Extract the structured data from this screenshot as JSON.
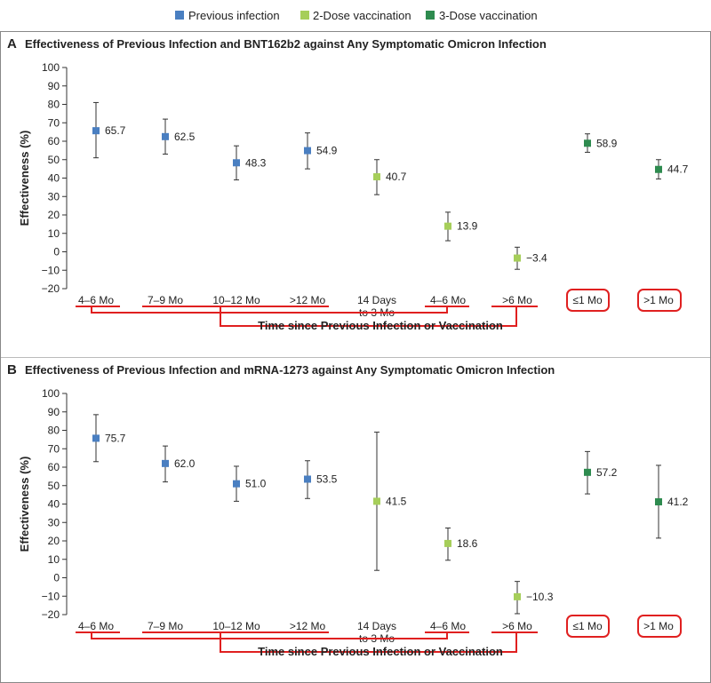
{
  "legend": [
    {
      "label": "Previous infection",
      "color": "#4a7fc1"
    },
    {
      "label": "2-Dose vaccination",
      "color": "#a6ce5a"
    },
    {
      "label": "3-Dose vaccination",
      "color": "#2e8b4f"
    }
  ],
  "highlight_color": "#e02020",
  "chart_data": [
    {
      "type": "scatter",
      "panel": "A",
      "title": "Effectiveness of Previous Infection and BNT162b2 against Any Symptomatic Omicron Infection",
      "ylabel": "Effectiveness (%)",
      "xlabel": "Time since Previous Infection or Vaccination",
      "ylim": [
        -20,
        100
      ],
      "yticks": [
        -20,
        -10,
        0,
        10,
        20,
        30,
        40,
        50,
        60,
        70,
        80,
        90,
        100
      ],
      "ytick_labels": [
        "−20",
        "−10",
        "0",
        "10",
        "20",
        "30",
        "40",
        "50",
        "60",
        "70",
        "80",
        "90",
        "100"
      ],
      "categories": [
        "4–6 Mo",
        "7–9 Mo",
        "10–12 Mo",
        ">12 Mo",
        "14 Days to 3 Mo",
        "4–6 Mo",
        ">6 Mo",
        "≤1 Mo",
        ">1 Mo"
      ],
      "groups": [
        "Previous infection",
        "Previous infection",
        "Previous infection",
        "Previous infection",
        "2-Dose vaccination",
        "2-Dose vaccination",
        "2-Dose vaccination",
        "3-Dose vaccination",
        "3-Dose vaccination"
      ],
      "values": [
        65.7,
        62.5,
        48.3,
        54.9,
        40.7,
        13.9,
        -3.4,
        58.9,
        44.7
      ],
      "value_labels": [
        "65.7",
        "62.5",
        "48.3",
        "54.9",
        "40.7",
        "13.9",
        "−3.4",
        "58.9",
        "44.7"
      ],
      "ci_lower": [
        51,
        53,
        39,
        45,
        31,
        6,
        -9.5,
        54,
        39.5
      ],
      "ci_upper": [
        81,
        72,
        57.5,
        64.5,
        50,
        21.5,
        2.5,
        64,
        50
      ]
    },
    {
      "type": "scatter",
      "panel": "B",
      "title": "Effectiveness of Previous Infection and mRNA-1273 against Any Symptomatic Omicron Infection",
      "ylabel": "Effectiveness (%)",
      "xlabel": "Time since Previous Infection or Vaccination",
      "ylim": [
        -20,
        100
      ],
      "yticks": [
        -20,
        -10,
        0,
        10,
        20,
        30,
        40,
        50,
        60,
        70,
        80,
        90,
        100
      ],
      "ytick_labels": [
        "−20",
        "−10",
        "0",
        "10",
        "20",
        "30",
        "40",
        "50",
        "60",
        "70",
        "80",
        "90",
        "100"
      ],
      "categories": [
        "4–6 Mo",
        "7–9 Mo",
        "10–12 Mo",
        ">12 Mo",
        "14 Days to 3 Mo",
        "4–6 Mo",
        ">6 Mo",
        "≤1 Mo",
        ">1 Mo"
      ],
      "groups": [
        "Previous infection",
        "Previous infection",
        "Previous infection",
        "Previous infection",
        "2-Dose vaccination",
        "2-Dose vaccination",
        "2-Dose vaccination",
        "3-Dose vaccination",
        "3-Dose vaccination"
      ],
      "values": [
        75.7,
        62.0,
        51.0,
        53.5,
        41.5,
        18.6,
        -10.3,
        57.2,
        41.2
      ],
      "value_labels": [
        "75.7",
        "62.0",
        "51.0",
        "53.5",
        "41.5",
        "18.6",
        "−10.3",
        "57.2",
        "41.2"
      ],
      "ci_lower": [
        63,
        52,
        41.5,
        43,
        4,
        9.5,
        -19.5,
        45.5,
        21.5
      ],
      "ci_upper": [
        88.5,
        71.5,
        60.5,
        63.5,
        79,
        27,
        -2,
        68.5,
        61
      ]
    }
  ]
}
